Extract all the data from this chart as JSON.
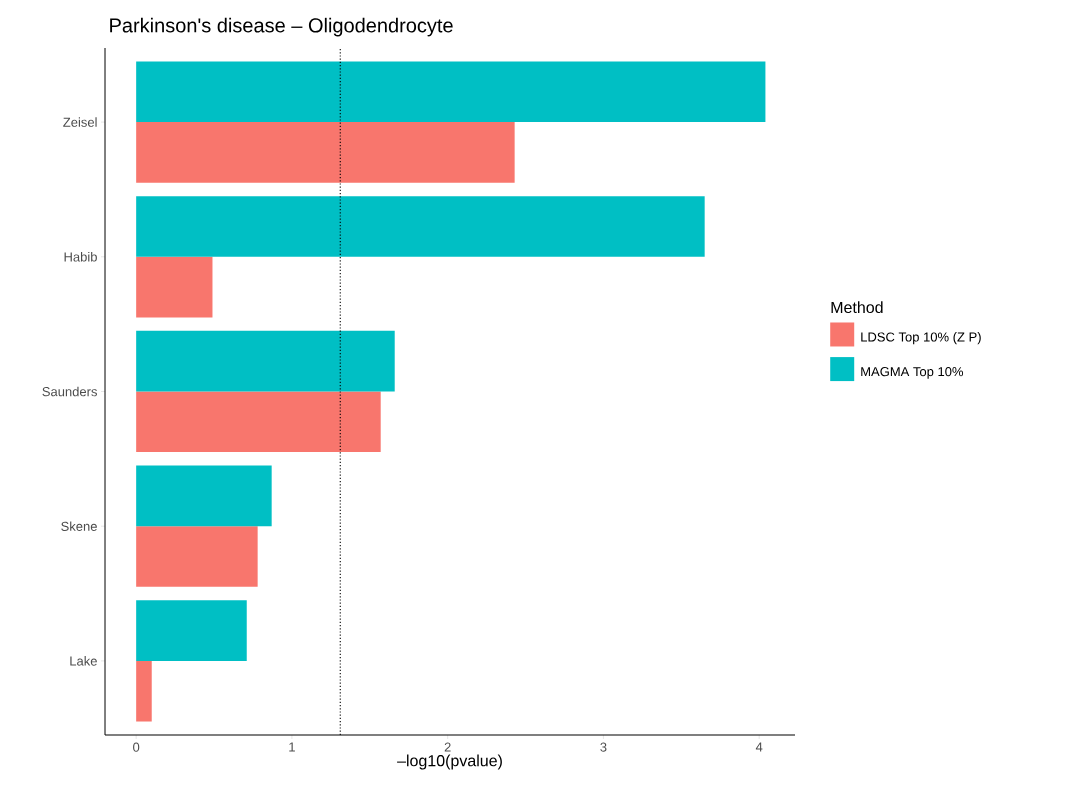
{
  "chart_data": {
    "type": "bar",
    "orientation": "horizontal",
    "title": "Parkinson's disease – Oligodendrocyte",
    "xlabel": "–log10(pvalue)",
    "legend_title": "Method",
    "categories": [
      "Zeisel",
      "Habib",
      "Saunders",
      "Skene",
      "Lake"
    ],
    "series": [
      {
        "name": "LDSC Top 10% (Z P)",
        "color": "#f8766d",
        "values": [
          2.43,
          0.49,
          1.57,
          0.78,
          0.1
        ]
      },
      {
        "name": "MAGMA Top 10%",
        "color": "#00bfc4",
        "values": [
          4.04,
          3.65,
          1.66,
          0.87,
          0.71
        ]
      }
    ],
    "xlim": [
      -0.2,
      4.23
    ],
    "xticks": [
      0,
      1,
      2,
      3,
      4
    ],
    "ref_lines": [
      {
        "axis": "x",
        "value": 1.31,
        "line_style": "dotted",
        "color": "#000000"
      }
    ],
    "grid": false,
    "legend": "right"
  }
}
